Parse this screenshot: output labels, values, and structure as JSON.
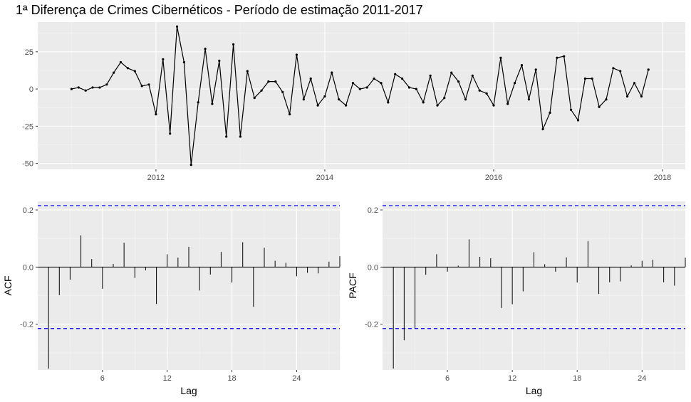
{
  "title": "1ª Diferença de Crimes Cibernéticos - Período de estimação 2011-2017",
  "chart_data": [
    {
      "type": "line",
      "x_start": 2011,
      "x_period": "monthly",
      "x_ticks": [
        "2012",
        "2014",
        "2016",
        "2018"
      ],
      "y_ticks": [
        "25",
        "0",
        "-25",
        "-50"
      ],
      "xlim": [
        2010.6,
        2018.27
      ],
      "ylim": [
        -54,
        45
      ],
      "xlabel": "",
      "ylabel": "",
      "grid": true,
      "values": [
        0,
        1,
        -1,
        1,
        1,
        3,
        11,
        18,
        14,
        12,
        2,
        3,
        -17,
        20,
        -30,
        42,
        18,
        -51,
        -9,
        27,
        -10,
        19,
        -32,
        30,
        -32,
        12,
        -6,
        -1,
        5,
        5,
        -2,
        -17,
        23,
        -7,
        7,
        -11,
        -5,
        11,
        -7,
        -11,
        4,
        0,
        1,
        7,
        4,
        -9,
        10,
        7,
        1,
        0,
        -9,
        9,
        -11,
        -6,
        11,
        5,
        -7,
        9,
        -1,
        -3,
        -11,
        21,
        -10,
        4,
        16,
        -7,
        13,
        -27,
        -16,
        21,
        22,
        -14,
        -21,
        7,
        7,
        -12,
        -7,
        14,
        12,
        -5,
        4,
        -5,
        13
      ]
    },
    {
      "type": "bar",
      "ylabel": "ACF",
      "xlabel": "Lag",
      "x_ticks": [
        "6",
        "12",
        "18",
        "24"
      ],
      "y_ticks": [
        "0.2",
        "0.0",
        "-0.2"
      ],
      "xlim": [
        0,
        28
      ],
      "ylim": [
        -0.36,
        0.23
      ],
      "ci": 0.215,
      "lags": [
        1,
        2,
        3,
        4,
        5,
        6,
        7,
        8,
        9,
        10,
        11,
        12,
        13,
        14,
        15,
        16,
        17,
        18,
        19,
        20,
        21,
        22,
        23,
        24,
        25,
        26,
        27,
        28
      ],
      "values": [
        -0.355,
        -0.098,
        -0.044,
        0.111,
        0.028,
        -0.076,
        0.011,
        0.085,
        -0.038,
        -0.011,
        -0.129,
        0.045,
        0.033,
        0.071,
        -0.082,
        -0.026,
        0.053,
        -0.054,
        0.087,
        -0.139,
        0.068,
        0.022,
        0.015,
        -0.032,
        -0.02,
        -0.022,
        0.019,
        0.038
      ]
    },
    {
      "type": "bar",
      "ylabel": "PACF",
      "xlabel": "Lag",
      "x_ticks": [
        "6",
        "12",
        "18",
        "24"
      ],
      "y_ticks": [
        "0.2",
        "0.0",
        "-0.2"
      ],
      "xlim": [
        0,
        28
      ],
      "ylim": [
        -0.36,
        0.23
      ],
      "ci": 0.215,
      "lags": [
        1,
        2,
        3,
        4,
        5,
        6,
        7,
        8,
        9,
        10,
        11,
        12,
        13,
        14,
        15,
        16,
        17,
        18,
        19,
        20,
        21,
        22,
        23,
        24,
        25,
        26,
        27,
        28
      ],
      "values": [
        -0.355,
        -0.256,
        -0.215,
        -0.027,
        0.045,
        -0.016,
        0.005,
        0.097,
        0.036,
        0.031,
        -0.143,
        -0.13,
        -0.085,
        0.052,
        0.01,
        -0.016,
        0.034,
        -0.054,
        0.091,
        -0.094,
        -0.053,
        -0.05,
        0.006,
        0.022,
        0.026,
        -0.053,
        -0.065,
        0.033
      ]
    }
  ]
}
